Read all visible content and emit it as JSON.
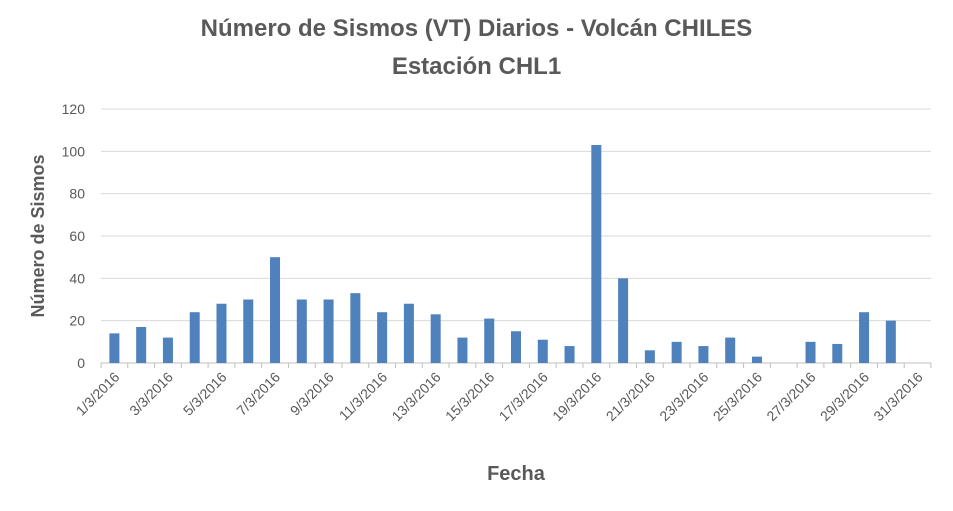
{
  "chart_data": {
    "type": "bar",
    "title": "Número de Sismos (VT) Diarios -  Volcán CHILES",
    "subtitle": "Estación CHL1",
    "xlabel": "Fecha",
    "ylabel": "Número de Sismos",
    "ylim": [
      0,
      120
    ],
    "yticks": [
      0,
      20,
      40,
      60,
      80,
      100,
      120
    ],
    "grid": true,
    "bar_color": "#4F81BD",
    "categories": [
      "1/3/2016",
      "2/3/2016",
      "3/3/2016",
      "4/3/2016",
      "5/3/2016",
      "6/3/2016",
      "7/3/2016",
      "8/3/2016",
      "9/3/2016",
      "10/3/2016",
      "11/3/2016",
      "12/3/2016",
      "13/3/2016",
      "14/3/2016",
      "15/3/2016",
      "16/3/2016",
      "17/3/2016",
      "18/3/2016",
      "19/3/2016",
      "20/3/2016",
      "21/3/2016",
      "22/3/2016",
      "23/3/2016",
      "24/3/2016",
      "25/3/2016",
      "26/3/2016",
      "27/3/2016",
      "28/3/2016",
      "29/3/2016",
      "30/3/2016",
      "31/3/2016"
    ],
    "tick_labels": [
      "1/3/2016",
      "3/3/2016",
      "5/3/2016",
      "7/3/2016",
      "9/3/2016",
      "11/3/2016",
      "13/3/2016",
      "15/3/2016",
      "17/3/2016",
      "19/3/2016",
      "21/3/2016",
      "23/3/2016",
      "25/3/2016",
      "27/3/2016",
      "29/3/2016",
      "31/3/2016"
    ],
    "values": [
      14,
      17,
      12,
      24,
      28,
      30,
      50,
      30,
      30,
      33,
      24,
      28,
      23,
      12,
      21,
      15,
      11,
      8,
      103,
      40,
      6,
      10,
      8,
      12,
      3,
      0,
      10,
      9,
      24,
      20,
      0
    ]
  }
}
